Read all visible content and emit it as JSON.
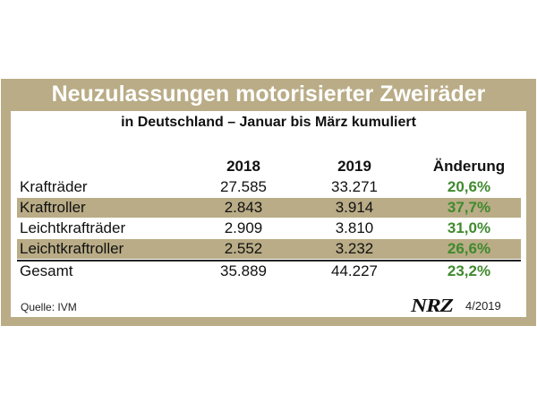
{
  "title": "Neuzulassungen motorisierter Zweiräder",
  "subtitle": "in Deutschland – Januar bis März kumuliert",
  "columns": [
    "2018",
    "2019",
    "Änderung"
  ],
  "rows": [
    {
      "label": "Krafträder",
      "v2018": "27.585",
      "v2019": "33.271",
      "change": "20,6%"
    },
    {
      "label": "Kraftroller",
      "v2018": "2.843",
      "v2019": "3.914",
      "change": "37,7%"
    },
    {
      "label": "Leichtkrafträder",
      "v2018": "2.909",
      "v2019": "3.810",
      "change": "31,0%"
    },
    {
      "label": "Leichtkraftroller",
      "v2018": "2.552",
      "v2019": "3.232",
      "change": "26,6%"
    },
    {
      "label": "Gesamt",
      "v2018": "35.889",
      "v2019": "44.227",
      "change": "23,2%"
    }
  ],
  "source": "Quelle: IVM",
  "logo": "NRZ",
  "date": "4/2019",
  "colors": {
    "frame": "#b9ac86",
    "change_text": "#3f8a2e"
  }
}
